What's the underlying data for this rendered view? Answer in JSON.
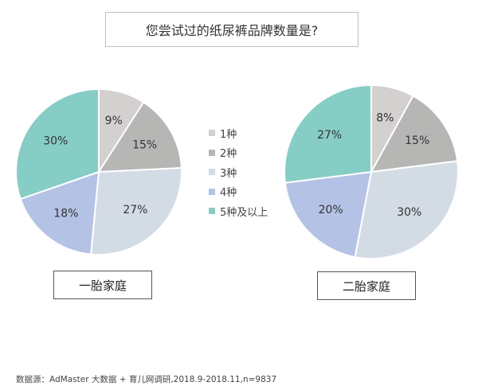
{
  "title": "您尝试过的纸尿裤品牌数量是?",
  "chart_data": [
    {
      "type": "pie",
      "name": "一胎家庭",
      "categories": [
        "1种",
        "2种",
        "3种",
        "4种",
        "5种及以上"
      ],
      "values": [
        9,
        15,
        27,
        18,
        30
      ],
      "labels": [
        "9%",
        "15%",
        "27%",
        "18%",
        "30%"
      ]
    },
    {
      "type": "pie",
      "name": "二胎家庭",
      "categories": [
        "1种",
        "2种",
        "3种",
        "4种",
        "5种及以上"
      ],
      "values": [
        8,
        15,
        30,
        20,
        27
      ],
      "labels": [
        "8%",
        "15%",
        "30%",
        "20%",
        "27%"
      ]
    }
  ],
  "legend": {
    "placement": "center",
    "items": [
      {
        "label": "1种",
        "color": "#d3d0cf"
      },
      {
        "label": "2种",
        "color": "#b6b6b5"
      },
      {
        "label": "3种",
        "color": "#d3dbe5"
      },
      {
        "label": "4种",
        "color": "#b4c2e6"
      },
      {
        "label": "5种及以上",
        "color": "#86cdc5"
      }
    ]
  },
  "source": "数据源：AdMaster 大数据 + 育儿网调研,2018.9-2018.11,n=9837"
}
